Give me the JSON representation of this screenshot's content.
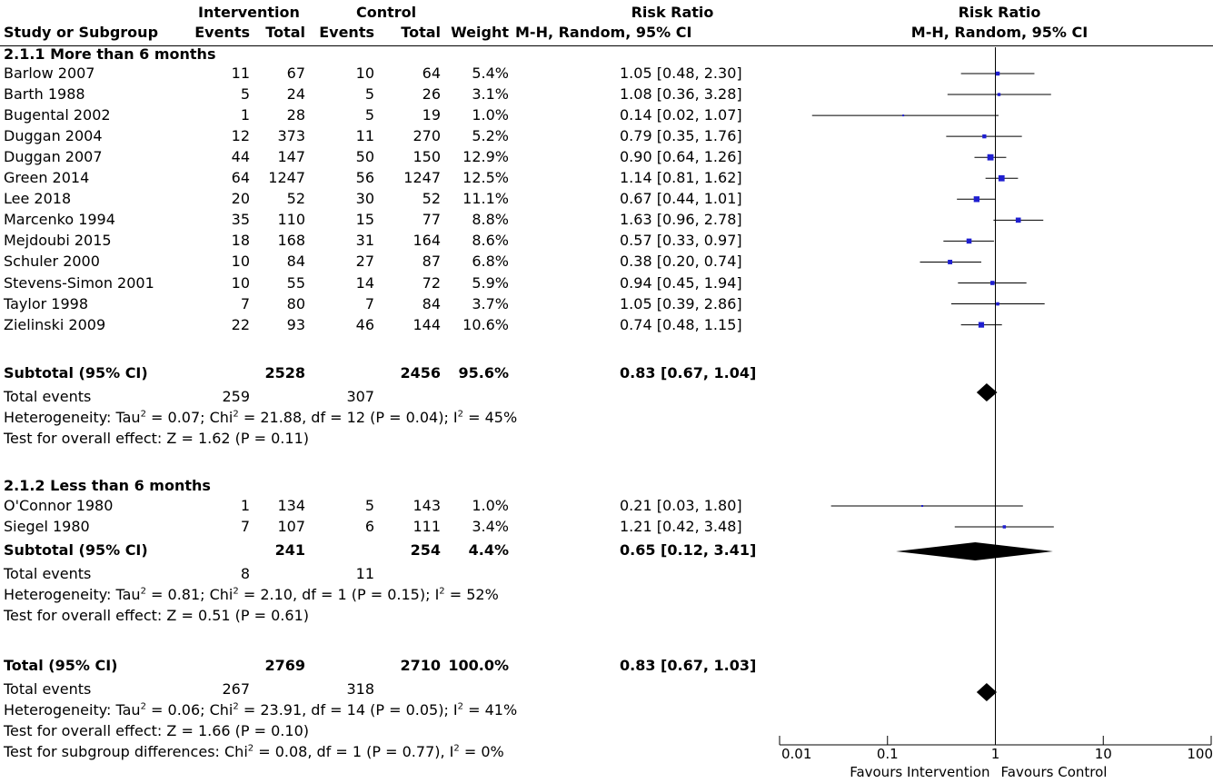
{
  "header": {
    "col_study": "Study or Subgroup",
    "group_intervention": "Intervention",
    "group_control": "Control",
    "col_events": "Events",
    "col_total": "Total",
    "col_weight": "Weight",
    "col_rr_title": "Risk Ratio",
    "col_rr_method": "M-H, Random, 95% CI",
    "plot_title": "Risk Ratio",
    "plot_method": "M-H, Random, 95% CI"
  },
  "subgroups": [
    {
      "title": "2.1.1 More than 6 months",
      "studies": [
        {
          "name": "Barlow 2007",
          "ie": "11",
          "it": "67",
          "ce": "10",
          "ct": "64",
          "w": "5.4%",
          "ci": "1.05 [0.48, 2.30]"
        },
        {
          "name": "Barth 1988",
          "ie": "5",
          "it": "24",
          "ce": "5",
          "ct": "26",
          "w": "3.1%",
          "ci": "1.08 [0.36, 3.28]"
        },
        {
          "name": "Bugental 2002",
          "ie": "1",
          "it": "28",
          "ce": "5",
          "ct": "19",
          "w": "1.0%",
          "ci": "0.14 [0.02, 1.07]"
        },
        {
          "name": "Duggan 2004",
          "ie": "12",
          "it": "373",
          "ce": "11",
          "ct": "270",
          "w": "5.2%",
          "ci": "0.79 [0.35, 1.76]"
        },
        {
          "name": "Duggan 2007",
          "ie": "44",
          "it": "147",
          "ce": "50",
          "ct": "150",
          "w": "12.9%",
          "ci": "0.90 [0.64, 1.26]"
        },
        {
          "name": "Green 2014",
          "ie": "64",
          "it": "1247",
          "ce": "56",
          "ct": "1247",
          "w": "12.5%",
          "ci": "1.14 [0.81, 1.62]"
        },
        {
          "name": "Lee 2018",
          "ie": "20",
          "it": "52",
          "ce": "30",
          "ct": "52",
          "w": "11.1%",
          "ci": "0.67 [0.44, 1.01]"
        },
        {
          "name": "Marcenko 1994",
          "ie": "35",
          "it": "110",
          "ce": "15",
          "ct": "77",
          "w": "8.8%",
          "ci": "1.63 [0.96, 2.78]"
        },
        {
          "name": "Mejdoubi 2015",
          "ie": "18",
          "it": "168",
          "ce": "31",
          "ct": "164",
          "w": "8.6%",
          "ci": "0.57 [0.33, 0.97]"
        },
        {
          "name": "Schuler 2000",
          "ie": "10",
          "it": "84",
          "ce": "27",
          "ct": "87",
          "w": "6.8%",
          "ci": "0.38 [0.20, 0.74]"
        },
        {
          "name": "Stevens-Simon 2001",
          "ie": "10",
          "it": "55",
          "ce": "14",
          "ct": "72",
          "w": "5.9%",
          "ci": "0.94 [0.45, 1.94]"
        },
        {
          "name": "Taylor 1998",
          "ie": "7",
          "it": "80",
          "ce": "7",
          "ct": "84",
          "w": "3.7%",
          "ci": "1.05 [0.39, 2.86]"
        },
        {
          "name": "Zielinski 2009",
          "ie": "22",
          "it": "93",
          "ce": "46",
          "ct": "144",
          "w": "10.6%",
          "ci": "0.74 [0.48, 1.15]"
        }
      ],
      "subtotal": {
        "label": "Subtotal (95% CI)",
        "it": "2528",
        "ct": "2456",
        "w": "95.6%",
        "ci": "0.83 [0.67, 1.04]"
      },
      "events": {
        "label": "Total events",
        "ie": "259",
        "ce": "307"
      },
      "het": {
        "pre": "Heterogeneity: Tau",
        "m1": " = 0.07; Chi",
        "m2": " = 21.88, df = 12 (P = 0.04); I",
        "post": " = 45%"
      },
      "overall": "Test for overall effect: Z = 1.62 (P = 0.11)"
    },
    {
      "title": "2.1.2 Less than 6 months",
      "studies": [
        {
          "name": "O'Connor 1980",
          "ie": "1",
          "it": "134",
          "ce": "5",
          "ct": "143",
          "w": "1.0%",
          "ci": "0.21 [0.03, 1.80]"
        },
        {
          "name": "Siegel 1980",
          "ie": "7",
          "it": "107",
          "ce": "6",
          "ct": "111",
          "w": "3.4%",
          "ci": "1.21 [0.42, 3.48]"
        }
      ],
      "subtotal": {
        "label": "Subtotal (95% CI)",
        "it": "241",
        "ct": "254",
        "w": "4.4%",
        "ci": "0.65 [0.12, 3.41]"
      },
      "events": {
        "label": "Total events",
        "ie": "8",
        "ce": "11"
      },
      "het": {
        "pre": "Heterogeneity: Tau",
        "m1": " = 0.81; Chi",
        "m2": " = 2.10, df = 1 (P = 0.15); I",
        "post": " = 52%"
      },
      "overall": "Test for overall effect: Z = 0.51 (P = 0.61)"
    }
  ],
  "total": {
    "label": "Total (95% CI)",
    "it": "2769",
    "ct": "2710",
    "w": "100.0%",
    "ci": "0.83 [0.67, 1.03]",
    "events": {
      "label": "Total events",
      "ie": "267",
      "ce": "318"
    },
    "het": {
      "pre": "Heterogeneity: Tau",
      "m1": " = 0.06; Chi",
      "m2": " = 23.91, df = 14 (P = 0.05); I",
      "post": " = 41%"
    },
    "overall": "Test for overall effect: Z = 1.66 (P = 0.10)",
    "subgroup_diff": {
      "pre": "Test for subgroup differences: Chi",
      "mid": " = 0.08, df = 1 (P = 0.77), I",
      "post": " = 0%"
    }
  },
  "chart_data": {
    "type": "forest",
    "scale": "log",
    "xlim": [
      0.01,
      100
    ],
    "null_line": 1,
    "ticks": [
      {
        "value": 0.01,
        "label": "0.01"
      },
      {
        "value": 0.1,
        "label": "0.1"
      },
      {
        "value": 1,
        "label": "1"
      },
      {
        "value": 10,
        "label": "10"
      },
      {
        "value": 100,
        "label": "100"
      }
    ],
    "favours_left": "Favours Intervention",
    "favours_right": "Favours Control",
    "studies": [
      {
        "rr": 1.05,
        "lo": 0.48,
        "hi": 2.3,
        "w": 5.4
      },
      {
        "rr": 1.08,
        "lo": 0.36,
        "hi": 3.28,
        "w": 3.1
      },
      {
        "rr": 0.14,
        "lo": 0.02,
        "hi": 1.07,
        "w": 1.0
      },
      {
        "rr": 0.79,
        "lo": 0.35,
        "hi": 1.76,
        "w": 5.2
      },
      {
        "rr": 0.9,
        "lo": 0.64,
        "hi": 1.26,
        "w": 12.9
      },
      {
        "rr": 1.14,
        "lo": 0.81,
        "hi": 1.62,
        "w": 12.5
      },
      {
        "rr": 0.67,
        "lo": 0.44,
        "hi": 1.01,
        "w": 11.1
      },
      {
        "rr": 1.63,
        "lo": 0.96,
        "hi": 2.78,
        "w": 8.8
      },
      {
        "rr": 0.57,
        "lo": 0.33,
        "hi": 0.97,
        "w": 8.6
      },
      {
        "rr": 0.38,
        "lo": 0.2,
        "hi": 0.74,
        "w": 6.8
      },
      {
        "rr": 0.94,
        "lo": 0.45,
        "hi": 1.94,
        "w": 5.9
      },
      {
        "rr": 1.05,
        "lo": 0.39,
        "hi": 2.86,
        "w": 3.7
      },
      {
        "rr": 0.74,
        "lo": 0.48,
        "hi": 1.15,
        "w": 10.6
      },
      {
        "rr": 0.21,
        "lo": 0.03,
        "hi": 1.8,
        "w": 1.0
      },
      {
        "rr": 1.21,
        "lo": 0.42,
        "hi": 3.48,
        "w": 3.4
      }
    ],
    "diamonds": [
      {
        "rr": 0.83,
        "lo": 0.67,
        "hi": 1.04
      },
      {
        "rr": 0.65,
        "lo": 0.12,
        "hi": 3.41
      },
      {
        "rr": 0.83,
        "lo": 0.67,
        "hi": 1.03
      }
    ],
    "colors": {
      "square": "#1f1fd0",
      "line": "#000000",
      "diamond": "#000000"
    }
  }
}
